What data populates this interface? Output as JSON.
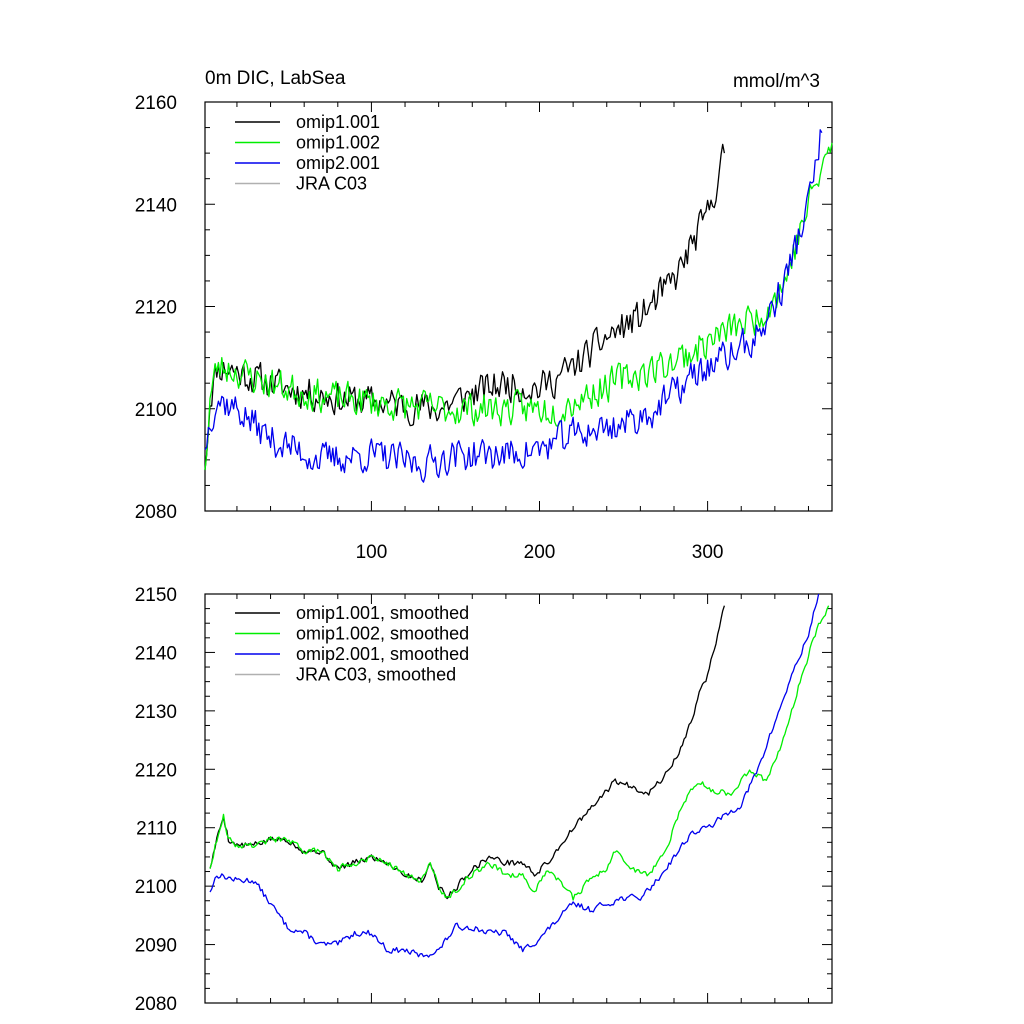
{
  "chart_data": [
    {
      "type": "line",
      "title_left": "0m DIC, LabSea",
      "title_right": "mmol/m^3",
      "xlim": [
        1,
        374
      ],
      "ylim": [
        2080,
        2160
      ],
      "x_ticks": [
        100,
        200,
        300
      ],
      "x_tick_labels": [
        "100",
        "200",
        "300"
      ],
      "y_ticks": [
        2080,
        2100,
        2120,
        2140,
        2160
      ],
      "y_tick_labels": [
        "2080",
        "2100",
        "2120",
        "2140",
        "2160"
      ],
      "legend": "top-left",
      "series": [
        {
          "name": "omip1.001",
          "color": "#000000",
          "noise": 3.0,
          "seed": 11,
          "points": [
            [
              1,
              2088
            ],
            [
              4,
              2102
            ],
            [
              8,
              2108
            ],
            [
              15,
              2108
            ],
            [
              30,
              2106
            ],
            [
              50,
              2104
            ],
            [
              80,
              2102
            ],
            [
              110,
              2101
            ],
            [
              140,
              2100
            ],
            [
              160,
              2103
            ],
            [
              180,
              2105
            ],
            [
              200,
              2104
            ],
            [
              220,
              2108
            ],
            [
              240,
              2114
            ],
            [
              260,
              2118
            ],
            [
              280,
              2125
            ],
            [
              300,
              2138
            ],
            [
              310,
              2150
            ]
          ]
        },
        {
          "name": "omip1.002",
          "color": "#00ee00",
          "noise": 3.0,
          "seed": 23,
          "points": [
            [
              1,
              2088
            ],
            [
              4,
              2102
            ],
            [
              8,
              2108
            ],
            [
              15,
              2108
            ],
            [
              30,
              2106
            ],
            [
              50,
              2104
            ],
            [
              80,
              2102
            ],
            [
              110,
              2101
            ],
            [
              140,
              2100
            ],
            [
              165,
              2100
            ],
            [
              190,
              2100
            ],
            [
              210,
              2100
            ],
            [
              230,
              2103
            ],
            [
              250,
              2106
            ],
            [
              270,
              2108
            ],
            [
              290,
              2111
            ],
            [
              310,
              2115
            ],
            [
              330,
              2118
            ],
            [
              345,
              2124
            ],
            [
              360,
              2140
            ],
            [
              374,
              2152
            ]
          ]
        },
        {
          "name": "omip2.001",
          "color": "#0000ee",
          "noise": 3.0,
          "seed": 37,
          "points": [
            [
              1,
              2092
            ],
            [
              4,
              2098
            ],
            [
              8,
              2102
            ],
            [
              20,
              2100
            ],
            [
              40,
              2094
            ],
            [
              70,
              2090
            ],
            [
              100,
              2091
            ],
            [
              130,
              2089
            ],
            [
              150,
              2091
            ],
            [
              180,
              2091
            ],
            [
              200,
              2092
            ],
            [
              220,
              2095
            ],
            [
              250,
              2097
            ],
            [
              270,
              2100
            ],
            [
              290,
              2106
            ],
            [
              310,
              2110
            ],
            [
              330,
              2114
            ],
            [
              345,
              2124
            ],
            [
              360,
              2140
            ],
            [
              368,
              2154
            ]
          ]
        },
        {
          "name": "JRA C03",
          "color": "#b0b0b0",
          "noise": 0,
          "seed": 1,
          "points": []
        }
      ]
    },
    {
      "type": "line",
      "xlim": [
        1,
        374
      ],
      "ylim": [
        2080,
        2150
      ],
      "x_ticks": [
        100,
        200,
        300
      ],
      "x_tick_labels": [],
      "y_ticks": [
        2080,
        2090,
        2100,
        2110,
        2120,
        2130,
        2140,
        2150
      ],
      "y_tick_labels": [
        "2080",
        "2090",
        "2100",
        "2110",
        "2120",
        "2130",
        "2140",
        "2150"
      ],
      "legend": "top-left",
      "series": [
        {
          "name": "omip1.001, smoothed",
          "color": "#000000",
          "noise": 0.5,
          "seed": 5,
          "points": [
            [
              4,
              2103
            ],
            [
              8,
              2108
            ],
            [
              12,
              2112
            ],
            [
              15,
              2108
            ],
            [
              20,
              2107
            ],
            [
              30,
              2107
            ],
            [
              40,
              2108
            ],
            [
              50,
              2108
            ],
            [
              60,
              2106
            ],
            [
              70,
              2106
            ],
            [
              80,
              2103
            ],
            [
              90,
              2104
            ],
            [
              100,
              2105
            ],
            [
              110,
              2104
            ],
            [
              120,
              2102
            ],
            [
              130,
              2101
            ],
            [
              135,
              2104
            ],
            [
              140,
              2100
            ],
            [
              145,
              2098
            ],
            [
              160,
              2103
            ],
            [
              170,
              2105
            ],
            [
              180,
              2104
            ],
            [
              190,
              2104
            ],
            [
              197,
              2102
            ],
            [
              205,
              2104
            ],
            [
              215,
              2108
            ],
            [
              220,
              2110
            ],
            [
              230,
              2113
            ],
            [
              245,
              2118
            ],
            [
              255,
              2117
            ],
            [
              265,
              2116
            ],
            [
              275,
              2119
            ],
            [
              285,
              2124
            ],
            [
              290,
              2128
            ],
            [
              295,
              2133
            ],
            [
              300,
              2136
            ],
            [
              305,
              2142
            ],
            [
              310,
              2148
            ]
          ]
        },
        {
          "name": "omip1.002, smoothed",
          "color": "#00ee00",
          "noise": 0.5,
          "seed": 9,
          "points": [
            [
              4,
              2103
            ],
            [
              8,
              2108
            ],
            [
              12,
              2112
            ],
            [
              15,
              2108
            ],
            [
              20,
              2107
            ],
            [
              30,
              2107
            ],
            [
              40,
              2108
            ],
            [
              50,
              2108
            ],
            [
              60,
              2106
            ],
            [
              70,
              2106
            ],
            [
              80,
              2103
            ],
            [
              90,
              2104
            ],
            [
              100,
              2105
            ],
            [
              110,
              2104
            ],
            [
              120,
              2102
            ],
            [
              130,
              2101
            ],
            [
              135,
              2104
            ],
            [
              140,
              2100
            ],
            [
              145,
              2098
            ],
            [
              160,
              2102
            ],
            [
              170,
              2104
            ],
            [
              180,
              2102
            ],
            [
              190,
              2102
            ],
            [
              197,
              2099
            ],
            [
              205,
              2103
            ],
            [
              212,
              2101
            ],
            [
              220,
              2098
            ],
            [
              230,
              2101
            ],
            [
              240,
              2103
            ],
            [
              245,
              2106
            ],
            [
              255,
              2103
            ],
            [
              265,
              2102
            ],
            [
              275,
              2106
            ],
            [
              285,
              2114
            ],
            [
              295,
              2118
            ],
            [
              305,
              2116
            ],
            [
              315,
              2116
            ],
            [
              325,
              2120
            ],
            [
              335,
              2118
            ],
            [
              345,
              2125
            ],
            [
              355,
              2135
            ],
            [
              365,
              2144
            ],
            [
              372,
              2148
            ]
          ]
        },
        {
          "name": "omip2.001, smoothed",
          "color": "#0000ee",
          "noise": 0.5,
          "seed": 13,
          "points": [
            [
              4,
              2099
            ],
            [
              8,
              2102
            ],
            [
              20,
              2101
            ],
            [
              30,
              2101
            ],
            [
              40,
              2097
            ],
            [
              50,
              2093
            ],
            [
              60,
              2092
            ],
            [
              70,
              2090
            ],
            [
              80,
              2090
            ],
            [
              90,
              2092
            ],
            [
              100,
              2092
            ],
            [
              110,
              2089
            ],
            [
              120,
              2089
            ],
            [
              130,
              2088
            ],
            [
              140,
              2089
            ],
            [
              150,
              2093
            ],
            [
              160,
              2093
            ],
            [
              170,
              2092
            ],
            [
              180,
              2092
            ],
            [
              190,
              2089
            ],
            [
              200,
              2091
            ],
            [
              210,
              2094
            ],
            [
              220,
              2097
            ],
            [
              230,
              2096
            ],
            [
              240,
              2097
            ],
            [
              250,
              2098
            ],
            [
              260,
              2098
            ],
            [
              270,
              2101
            ],
            [
              280,
              2105
            ],
            [
              290,
              2109
            ],
            [
              300,
              2110
            ],
            [
              310,
              2112
            ],
            [
              320,
              2114
            ],
            [
              330,
              2120
            ],
            [
              340,
              2128
            ],
            [
              350,
              2136
            ],
            [
              360,
              2143
            ],
            [
              366,
              2150
            ]
          ]
        },
        {
          "name": "JRA C03, smoothed",
          "color": "#b0b0b0",
          "noise": 0,
          "seed": 1,
          "points": []
        }
      ]
    }
  ]
}
